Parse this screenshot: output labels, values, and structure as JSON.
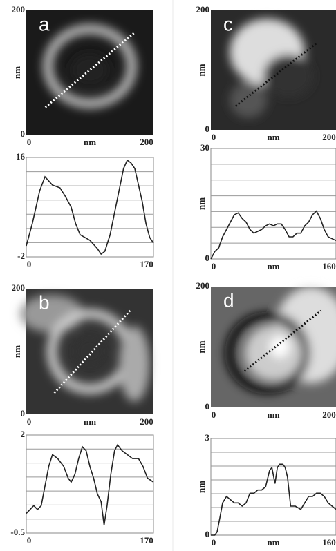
{
  "chart_data": [
    {
      "type": "image",
      "label": "a",
      "xlim": [
        0,
        200
      ],
      "ylim": [
        0,
        200
      ],
      "xticks": [
        0,
        200
      ],
      "yticks": [
        0,
        200
      ],
      "xlabel": "nm",
      "ylabel": "nm"
    },
    {
      "type": "line",
      "xlim": [
        0,
        170
      ],
      "ylim": [
        -2,
        16
      ],
      "xticks": [
        0,
        170
      ],
      "yticks": [
        -2,
        16
      ],
      "grid": true,
      "x": [
        0,
        8,
        18,
        25,
        35,
        45,
        52,
        60,
        66,
        72,
        85,
        95,
        100,
        105,
        112,
        118,
        124,
        130,
        135,
        140,
        145,
        150,
        155,
        160,
        165,
        170
      ],
      "series": [
        {
          "color": "#222222",
          "values": [
            0,
            4,
            10,
            12.5,
            11,
            10.5,
            9,
            7,
            4,
            2,
            1,
            -0.5,
            -1.5,
            -1,
            2,
            6,
            10,
            14,
            15.5,
            15,
            14,
            11,
            8,
            4,
            1.5,
            0.5
          ]
        }
      ]
    },
    {
      "type": "image",
      "label": "c",
      "xlim": [
        0,
        200
      ],
      "ylim": [
        0,
        200
      ],
      "xticks": [
        0,
        200
      ],
      "yticks": [
        0,
        200
      ],
      "xlabel": "nm",
      "ylabel": "nm"
    },
    {
      "type": "line",
      "xlim": [
        0,
        160
      ],
      "ylim": [
        0,
        30
      ],
      "xticks": [
        0,
        {
          "value": 80,
          "label": "nm"
        },
        160
      ],
      "yticks": [
        0,
        30
      ],
      "ylabel": "nm",
      "grid": true,
      "x": [
        0,
        5,
        10,
        15,
        20,
        25,
        30,
        35,
        40,
        45,
        50,
        55,
        60,
        65,
        70,
        75,
        80,
        85,
        90,
        95,
        100,
        105,
        110,
        115,
        120,
        125,
        130,
        135,
        140,
        145,
        150,
        155,
        160
      ],
      "series": [
        {
          "color": "#222222",
          "values": [
            0,
            2,
            3,
            6,
            8,
            10,
            12,
            12.5,
            11,
            10,
            8,
            7,
            7.5,
            8,
            9,
            9.5,
            9,
            9.5,
            9.5,
            8,
            6,
            6,
            7,
            7,
            9,
            10,
            12,
            13,
            11,
            8,
            6,
            5.5,
            5
          ]
        }
      ]
    },
    {
      "type": "image",
      "label": "b",
      "xlim": [
        0,
        200
      ],
      "ylim": [
        0,
        200
      ],
      "xticks": [
        0,
        200
      ],
      "yticks": [
        0,
        200
      ],
      "xlabel": "nm",
      "ylabel": "nm"
    },
    {
      "type": "line",
      "xlim": [
        0,
        170
      ],
      "ylim": [
        -0.5,
        2
      ],
      "xticks": [
        0,
        170
      ],
      "yticks": [
        -0.5,
        2
      ],
      "grid": true,
      "x": [
        0,
        5,
        10,
        15,
        20,
        25,
        30,
        35,
        42,
        50,
        56,
        60,
        65,
        70,
        75,
        80,
        85,
        90,
        95,
        100,
        104,
        108,
        113,
        118,
        122,
        128,
        135,
        142,
        150,
        156,
        162,
        170
      ],
      "series": [
        {
          "color": "#222222",
          "values": [
            0,
            0.1,
            0.2,
            0.1,
            0.2,
            0.7,
            1.2,
            1.5,
            1.4,
            1.2,
            0.9,
            0.8,
            1.0,
            1.4,
            1.7,
            1.6,
            1.2,
            0.9,
            0.5,
            0.3,
            -0.3,
            0.2,
            1.0,
            1.6,
            1.75,
            1.6,
            1.5,
            1.4,
            1.4,
            1.2,
            0.9,
            0.8
          ]
        }
      ]
    },
    {
      "type": "image",
      "label": "d",
      "xlim": [
        0,
        200
      ],
      "ylim": [
        0,
        200
      ],
      "xticks": [
        0,
        200
      ],
      "yticks": [
        0,
        200
      ],
      "xlabel": "nm",
      "ylabel": "nm"
    },
    {
      "type": "line",
      "xlim": [
        0,
        160
      ],
      "ylim": [
        0,
        3
      ],
      "xticks": [
        0,
        {
          "value": 80,
          "label": "nm"
        },
        160
      ],
      "yticks": [
        0,
        3
      ],
      "ylabel": "nm",
      "grid": true,
      "x": [
        0,
        5,
        8,
        12,
        15,
        20,
        25,
        30,
        35,
        40,
        45,
        50,
        55,
        60,
        65,
        70,
        75,
        78,
        82,
        85,
        88,
        92,
        95,
        98,
        102,
        108,
        115,
        120,
        125,
        130,
        135,
        140,
        145,
        150,
        155,
        160
      ],
      "series": [
        {
          "color": "#222222",
          "values": [
            0,
            0,
            0.1,
            0.6,
            1.0,
            1.2,
            1.1,
            1.0,
            1.0,
            0.9,
            1.0,
            1.3,
            1.3,
            1.4,
            1.4,
            1.5,
            2.0,
            2.1,
            1.6,
            2.1,
            2.2,
            2.2,
            2.1,
            1.8,
            0.9,
            0.9,
            0.8,
            1.0,
            1.2,
            1.2,
            1.3,
            1.3,
            1.2,
            1.0,
            0.9,
            0.8
          ]
        }
      ]
    }
  ]
}
